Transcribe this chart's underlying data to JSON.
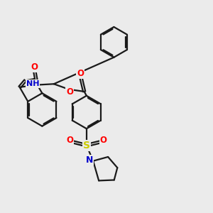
{
  "background_color": "#ebebeb",
  "bond_color": "#1a1a1a",
  "bond_width": 1.6,
  "dbo": 0.055,
  "atom_colors": {
    "O": "#ff0000",
    "N": "#0000cc",
    "S": "#cccc00"
  },
  "fs": 8.5,
  "fig_size": [
    3.0,
    3.0
  ],
  "dpi": 100
}
